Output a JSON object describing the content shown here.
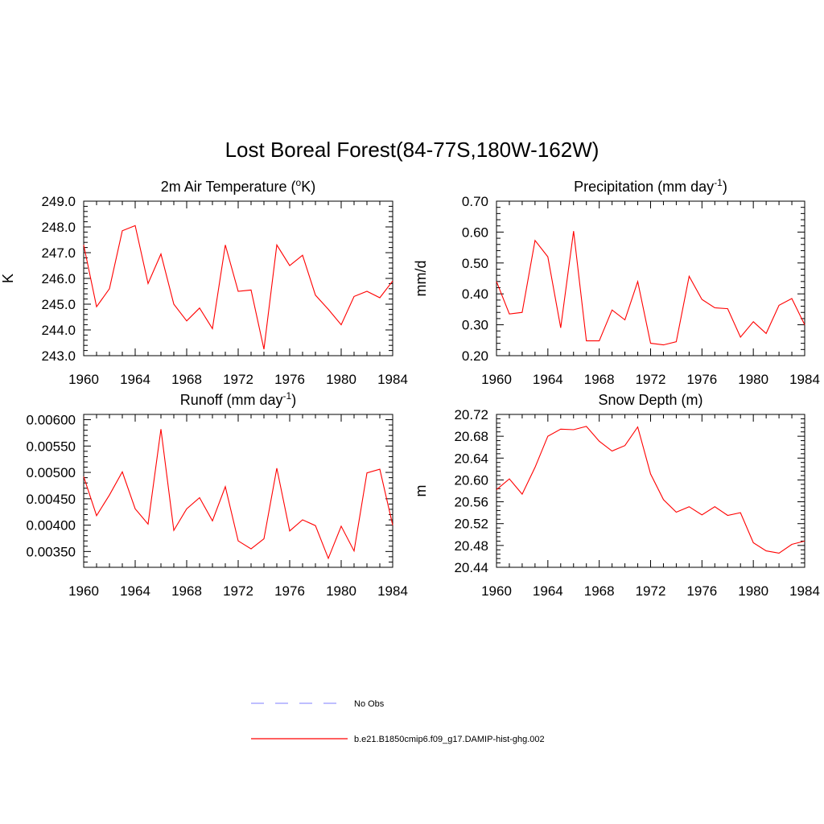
{
  "title": "Lost Boreal Forest(84-77S,180W-162W)",
  "colors": {
    "model": "#ff0000",
    "obs": "#9999ff",
    "axis": "#000000"
  },
  "legend": [
    {
      "label": "No Obs",
      "style": "dashed",
      "color": "#9999ff"
    },
    {
      "label": "b.e21.B1850cmip6.f09_g17.DAMIP-hist-ghg.002",
      "style": "solid",
      "color": "#ff0000"
    }
  ],
  "chart_data": [
    {
      "type": "line",
      "title_pre": "2m Air Temperature (",
      "title_sup": "o",
      "title_post": "K)",
      "ylabel": "K",
      "xlim": [
        1960,
        1984
      ],
      "ylim": [
        243.0,
        249.0
      ],
      "xticks": [
        "1960",
        "1964",
        "1968",
        "1972",
        "1976",
        "1980",
        "1984"
      ],
      "yticks": [
        "243.0",
        "244.0",
        "245.0",
        "246.0",
        "247.0",
        "248.0",
        "249.0"
      ],
      "x": [
        1960,
        1961,
        1962,
        1963,
        1964,
        1965,
        1966,
        1967,
        1968,
        1969,
        1970,
        1971,
        1972,
        1973,
        1974,
        1975,
        1976,
        1977,
        1978,
        1979,
        1980,
        1981,
        1982,
        1983,
        1984
      ],
      "series": [
        {
          "values": [
            247.3,
            244.9,
            245.6,
            247.85,
            248.05,
            245.8,
            246.95,
            245.0,
            244.35,
            244.85,
            244.05,
            247.3,
            245.5,
            245.55,
            243.25,
            247.3,
            246.5,
            246.9,
            245.35,
            244.8,
            244.2,
            245.3,
            245.5,
            245.25,
            245.9
          ]
        }
      ]
    },
    {
      "type": "line",
      "title_pre": "Precipitation (mm day",
      "title_sup": "-1",
      "title_post": ")",
      "ylabel": "mm/d",
      "xlim": [
        1960,
        1984
      ],
      "ylim": [
        0.2,
        0.7
      ],
      "xticks": [
        "1960",
        "1964",
        "1968",
        "1972",
        "1976",
        "1980",
        "1984"
      ],
      "yticks": [
        "0.20",
        "0.30",
        "0.40",
        "0.50",
        "0.60",
        "0.70"
      ],
      "x": [
        1960,
        1961,
        1962,
        1963,
        1964,
        1965,
        1966,
        1967,
        1968,
        1969,
        1970,
        1971,
        1972,
        1973,
        1974,
        1975,
        1976,
        1977,
        1978,
        1979,
        1980,
        1981,
        1982,
        1983,
        1984
      ],
      "series": [
        {
          "values": [
            0.44,
            0.335,
            0.34,
            0.573,
            0.52,
            0.29,
            0.603,
            0.248,
            0.248,
            0.348,
            0.316,
            0.44,
            0.24,
            0.235,
            0.245,
            0.457,
            0.382,
            0.355,
            0.352,
            0.26,
            0.31,
            0.272,
            0.363,
            0.385,
            0.3
          ]
        }
      ]
    },
    {
      "type": "line",
      "title_pre": "Runoff (mm day",
      "title_sup": "-1",
      "title_post": ")",
      "ylabel": "",
      "xlim": [
        1960,
        1984
      ],
      "ylim": [
        0.0032,
        0.0061
      ],
      "xticks": [
        "1960",
        "1964",
        "1968",
        "1972",
        "1976",
        "1980",
        "1984"
      ],
      "yticks": [
        "0.00350",
        "0.00400",
        "0.00450",
        "0.00500",
        "0.00550",
        "0.00600"
      ],
      "ytick_values": [
        0.0035,
        0.004,
        0.0045,
        0.005,
        0.0055,
        0.006
      ],
      "x": [
        1960,
        1961,
        1962,
        1963,
        1964,
        1965,
        1966,
        1967,
        1968,
        1969,
        1970,
        1971,
        1972,
        1973,
        1974,
        1975,
        1976,
        1977,
        1978,
        1979,
        1980,
        1981,
        1982,
        1983,
        1984
      ],
      "series": [
        {
          "values": [
            0.00492,
            0.00418,
            0.00457,
            0.00501,
            0.00431,
            0.00402,
            0.00582,
            0.0039,
            0.00431,
            0.00452,
            0.00408,
            0.00473,
            0.0037,
            0.00355,
            0.00374,
            0.00508,
            0.00389,
            0.0041,
            0.00399,
            0.00337,
            0.00398,
            0.00351,
            0.00499,
            0.00506,
            0.004
          ]
        }
      ]
    },
    {
      "type": "line",
      "title_pre": "Snow Depth (m)",
      "title_sup": "",
      "title_post": "",
      "ylabel": "m",
      "xlim": [
        1960,
        1984
      ],
      "ylim": [
        20.44,
        20.72
      ],
      "xticks": [
        "1960",
        "1964",
        "1968",
        "1972",
        "1976",
        "1980",
        "1984"
      ],
      "yticks": [
        "20.44",
        "20.48",
        "20.52",
        "20.56",
        "20.60",
        "20.64",
        "20.68",
        "20.72"
      ],
      "x": [
        1960,
        1961,
        1962,
        1963,
        1964,
        1965,
        1966,
        1967,
        1968,
        1969,
        1970,
        1971,
        1972,
        1973,
        1974,
        1975,
        1976,
        1977,
        1978,
        1979,
        1980,
        1981,
        1982,
        1983,
        1984
      ],
      "series": [
        {
          "values": [
            20.582,
            20.602,
            20.574,
            20.623,
            20.68,
            20.693,
            20.692,
            20.698,
            20.671,
            20.653,
            20.663,
            20.697,
            20.611,
            20.564,
            20.541,
            20.551,
            20.536,
            20.551,
            20.535,
            20.54,
            20.485,
            20.47,
            20.466,
            20.482,
            20.488
          ]
        }
      ]
    }
  ]
}
